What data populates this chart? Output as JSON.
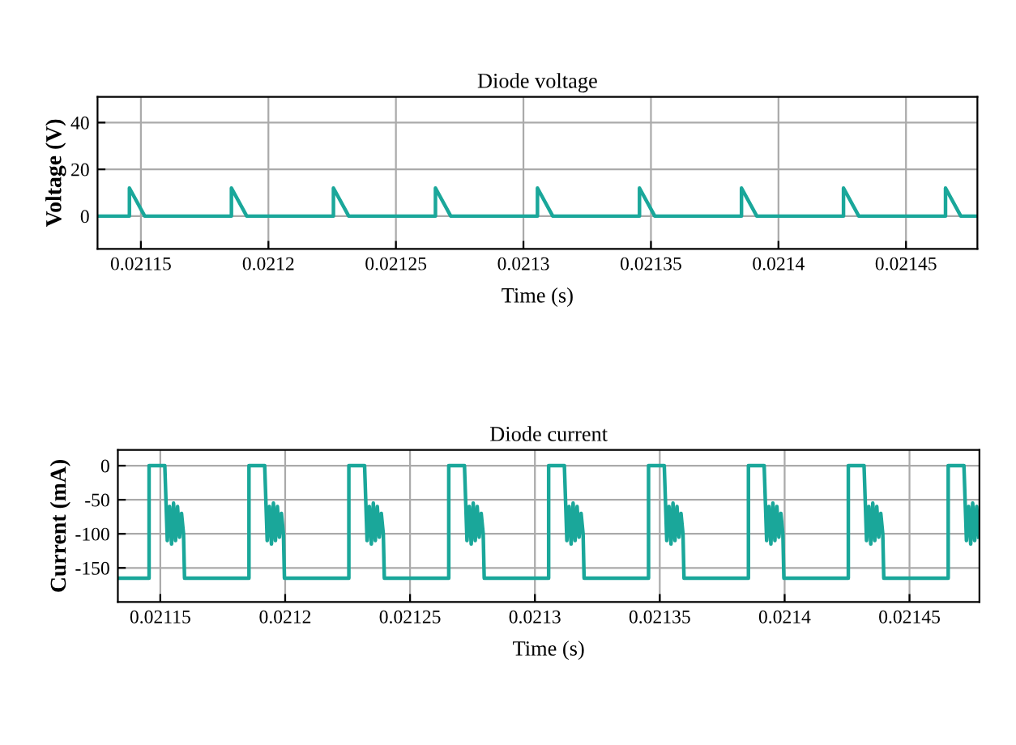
{
  "chart_data": [
    {
      "type": "line",
      "title": "Diode voltage",
      "xlabel": "Time (s)",
      "ylabel": "Voltage (V)",
      "xlim": [
        0.021133,
        0.021478
      ],
      "xticks": [
        0.02115,
        0.0212,
        0.02125,
        0.0213,
        0.02135,
        0.0214,
        0.02145
      ],
      "ylim": [
        -14,
        51
      ],
      "yticks": [
        0,
        20,
        40
      ],
      "grid": true,
      "series": [
        {
          "color": "#1aa79a",
          "x": [
            0.021133,
            0.0211455,
            0.0211455,
            0.0211515,
            0.0211855,
            0.0211855,
            0.0211915,
            0.0212255,
            0.0212255,
            0.0212315,
            0.0212655,
            0.0212655,
            0.0212715,
            0.0213055,
            0.0213055,
            0.0213115,
            0.0213455,
            0.0213455,
            0.0213515,
            0.0213855,
            0.0213855,
            0.0213915,
            0.0214255,
            0.0214255,
            0.0214315,
            0.0214655,
            0.0214655,
            0.0214715,
            0.021478
          ],
          "values": [
            0,
            0,
            12,
            0,
            0,
            12,
            0,
            0,
            12,
            0,
            0,
            12,
            0,
            0,
            12,
            0,
            0,
            12,
            0,
            0,
            12,
            0,
            0,
            12,
            0,
            0,
            12,
            0,
            0
          ]
        }
      ]
    },
    {
      "type": "line",
      "title": "Diode current",
      "xlabel": "Time (s)",
      "ylabel": "Current (mA)",
      "xlim": [
        0.021133,
        0.021478
      ],
      "xticks": [
        0.02115,
        0.0212,
        0.02125,
        0.0213,
        0.02135,
        0.0214,
        0.02145
      ],
      "ylim": [
        -200,
        23
      ],
      "yticks": [
        0,
        -50,
        -100,
        -150
      ],
      "grid": true,
      "series": [
        {
          "color": "#1aa79a",
          "x": [
            0.021133,
            0.0211455,
            0.0211455,
            0.0211518,
            0.0211528,
            0.0211537,
            0.0211545,
            0.0211553,
            0.0211561,
            0.0211569,
            0.0211577,
            0.0211585,
            0.0211593,
            0.0211597,
            0.0211855,
            0.0211855,
            0.0211918,
            0.0211928,
            0.0211937,
            0.0211945,
            0.0211953,
            0.0211961,
            0.0211969,
            0.0211977,
            0.0211985,
            0.0211993,
            0.0211997,
            0.0212255,
            0.0212255,
            0.0212318,
            0.0212328,
            0.0212337,
            0.0212345,
            0.0212353,
            0.0212361,
            0.0212369,
            0.0212377,
            0.0212385,
            0.0212393,
            0.0212397,
            0.0212655,
            0.0212655,
            0.0212718,
            0.0212728,
            0.0212737,
            0.0212745,
            0.0212753,
            0.0212761,
            0.0212769,
            0.0212777,
            0.0212785,
            0.0212793,
            0.0212797,
            0.0213055,
            0.0213055,
            0.0213118,
            0.0213128,
            0.0213137,
            0.0213145,
            0.0213153,
            0.0213161,
            0.0213169,
            0.0213177,
            0.0213185,
            0.0213193,
            0.0213197,
            0.0213455,
            0.0213455,
            0.0213518,
            0.0213528,
            0.0213537,
            0.0213545,
            0.0213553,
            0.0213561,
            0.0213569,
            0.0213577,
            0.0213585,
            0.0213593,
            0.0213597,
            0.0213855,
            0.0213855,
            0.0213918,
            0.0213928,
            0.0213937,
            0.0213945,
            0.0213953,
            0.0213961,
            0.0213969,
            0.0213977,
            0.0213985,
            0.0213993,
            0.0213997,
            0.0214255,
            0.0214255,
            0.0214318,
            0.0214328,
            0.0214337,
            0.0214345,
            0.0214353,
            0.0214361,
            0.0214369,
            0.0214377,
            0.0214385,
            0.0214393,
            0.0214397,
            0.0214655,
            0.0214655,
            0.0214718,
            0.0214728,
            0.0214737,
            0.0214745,
            0.0214753,
            0.0214761,
            0.0214769,
            0.0214777
          ],
          "values": [
            -165,
            -165,
            0,
            0,
            -110,
            -60,
            -115,
            -55,
            -110,
            -60,
            -105,
            -70,
            -100,
            -165,
            -165,
            0,
            0,
            -110,
            -60,
            -115,
            -55,
            -110,
            -60,
            -105,
            -70,
            -100,
            -165,
            -165,
            0,
            0,
            -110,
            -60,
            -115,
            -55,
            -110,
            -60,
            -105,
            -70,
            -100,
            -165,
            -165,
            0,
            0,
            -110,
            -60,
            -115,
            -55,
            -110,
            -60,
            -105,
            -70,
            -100,
            -165,
            -165,
            0,
            0,
            -110,
            -60,
            -115,
            -55,
            -110,
            -60,
            -105,
            -70,
            -100,
            -165,
            -165,
            0,
            0,
            -110,
            -60,
            -115,
            -55,
            -110,
            -60,
            -105,
            -70,
            -100,
            -165,
            -165,
            0,
            0,
            -110,
            -60,
            -115,
            -55,
            -110,
            -60,
            -105,
            -70,
            -100,
            -165,
            -165,
            0,
            0,
            -110,
            -60,
            -115,
            -55,
            -110,
            -60,
            -105,
            -70,
            -100,
            -165,
            -165,
            0,
            0,
            -110,
            -60,
            -115,
            -55,
            -110,
            -60,
            -105
          ]
        }
      ]
    }
  ]
}
